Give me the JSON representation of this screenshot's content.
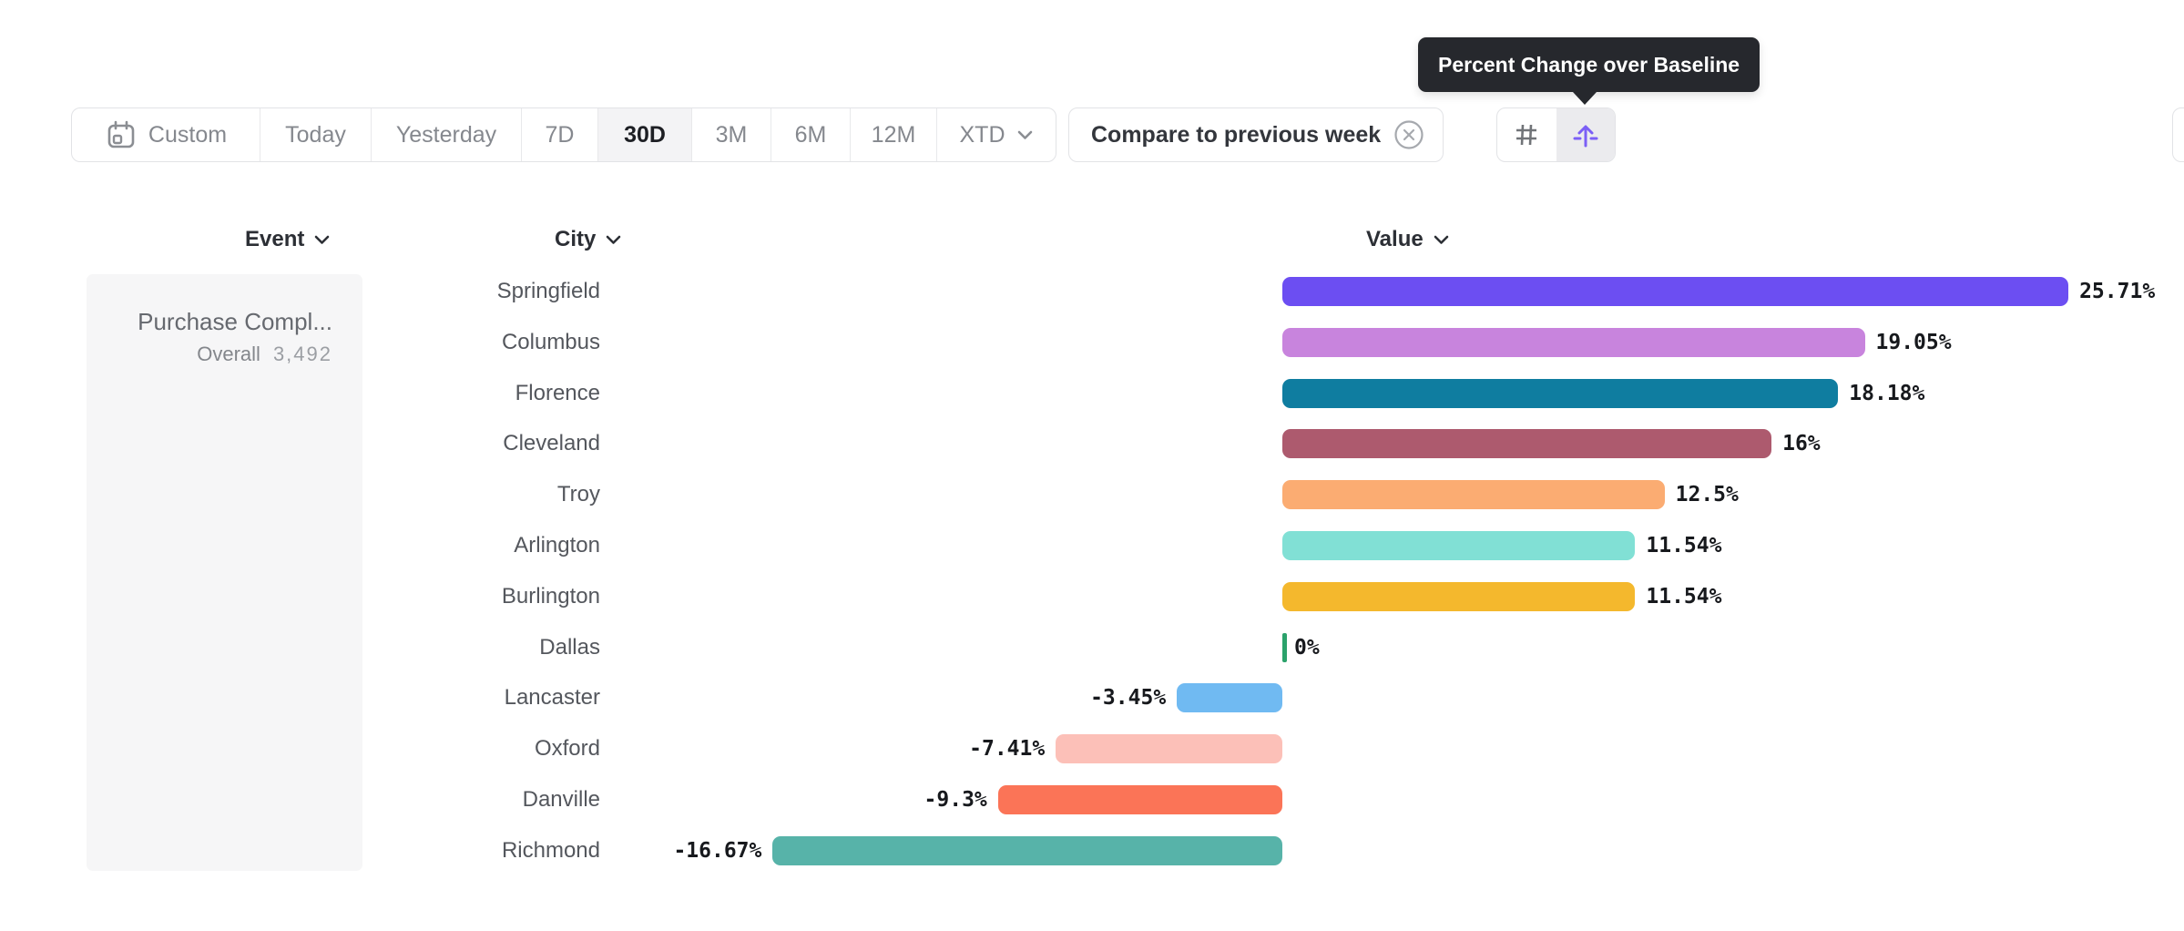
{
  "tooltip": {
    "text": "Percent Change over Baseline"
  },
  "toolbar": {
    "date_ranges": [
      {
        "label": "Custom",
        "icon": "calendar-icon",
        "selected": false
      },
      {
        "label": "Today",
        "selected": false
      },
      {
        "label": "Yesterday",
        "selected": false
      },
      {
        "label": "7D",
        "selected": false
      },
      {
        "label": "30D",
        "selected": true
      },
      {
        "label": "3M",
        "selected": false
      },
      {
        "label": "6M",
        "selected": false
      },
      {
        "label": "12M",
        "selected": false
      },
      {
        "label": "XTD",
        "has_chevron": true,
        "selected": false
      }
    ],
    "compare": {
      "label": "Compare to previous week",
      "icon": "remove-icon"
    },
    "view_toggle": [
      {
        "icon": "grid-icon",
        "selected": false
      },
      {
        "icon": "baseline-arrow-icon",
        "selected": true,
        "tooltip": "Percent Change over Baseline"
      }
    ]
  },
  "columns": {
    "event": "Event",
    "city": "City",
    "value": "Value"
  },
  "event_card": {
    "name": "Purchase Compl...",
    "overall_label": "Overall",
    "overall_value": "3,492"
  },
  "chart_data": {
    "type": "bar",
    "orientation": "horizontal",
    "title": "Percent Change over Baseline",
    "categories": [
      "Springfield",
      "Columbus",
      "Florence",
      "Cleveland",
      "Troy",
      "Arlington",
      "Burlington",
      "Dallas",
      "Lancaster",
      "Oxford",
      "Danville",
      "Richmond"
    ],
    "values": [
      25.71,
      19.05,
      18.18,
      16,
      12.5,
      11.54,
      11.54,
      0,
      -3.45,
      -7.41,
      -9.3,
      -16.67
    ],
    "labels": [
      "25.71%",
      "19.05%",
      "18.18%",
      "16%",
      "12.5%",
      "11.54%",
      "11.54%",
      "0%",
      "-3.45%",
      "-7.41%",
      "-9.3%",
      "-16.67%"
    ],
    "colors": [
      "#6c4ef2",
      "#c884dd",
      "#0f7da0",
      "#ad5a6e",
      "#fbac72",
      "#81e0d5",
      "#f4b82d",
      "#2ba26b",
      "#70baf2",
      "#fcc0b8",
      "#fb7457",
      "#57b3a9"
    ],
    "baseline": 0,
    "xlim": [
      -16.67,
      25.71
    ],
    "grid": false,
    "unit": "%"
  }
}
